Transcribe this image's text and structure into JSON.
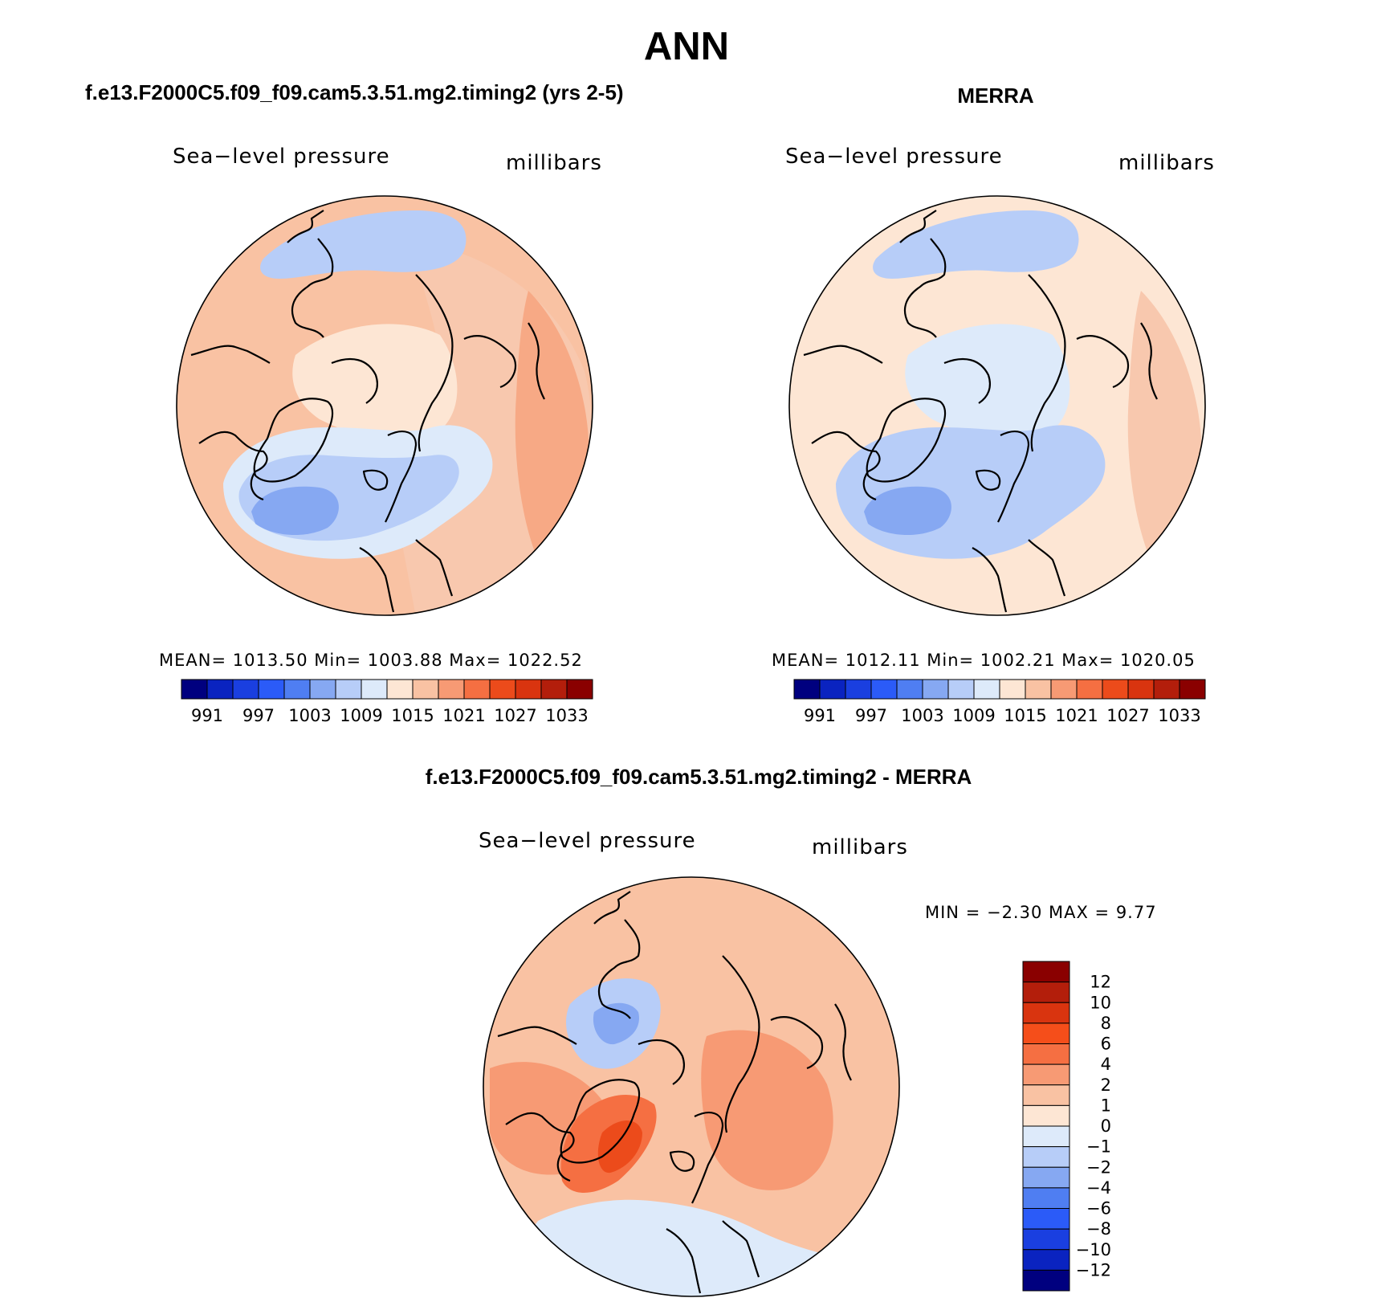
{
  "header": {
    "main_title": "ANN",
    "left_title": "f.e13.F2000C5.f09_f09.cam5.3.51.mg2.timing2 (yrs 2-5)",
    "right_title": "MERRA",
    "diff_title": "f.e13.F2000C5.f09_f09.cam5.3.51.mg2.timing2 - MERRA"
  },
  "panels": {
    "left": {
      "variable": "Sea−level pressure",
      "units": "millibars",
      "stats": "MEAN=  1013.50    Min=  1003.88    Max=  1022.52"
    },
    "right": {
      "variable": "Sea−level pressure",
      "units": "millibars",
      "stats": "MEAN=  1012.11    Min=  1002.21    Max=  1020.05"
    },
    "diff": {
      "variable": "Sea−level pressure",
      "units": "millibars",
      "stats": "MIN =    −2.30  MAX =      9.77"
    }
  },
  "colorbars": {
    "abs": {
      "labels": [
        "991",
        "997",
        "1003",
        "1009",
        "1015",
        "1021",
        "1027",
        "1033"
      ],
      "colors": [
        "#00007f",
        "#0a23c0",
        "#1a3fe0",
        "#2b5bf8",
        "#4f7ef2",
        "#86a8f2",
        "#b7cdf8",
        "#ddeafa",
        "#fde6d4",
        "#f9c2a3",
        "#f79a74",
        "#f56f42",
        "#ec4b1b",
        "#d9340f",
        "#b31e0b",
        "#8a0000"
      ]
    },
    "diff": {
      "labels": [
        "12",
        "10",
        "8",
        "6",
        "4",
        "2",
        "1",
        "0",
        "−1",
        "−2",
        "−4",
        "−6",
        "−8",
        "−10",
        "−12"
      ],
      "colors": [
        "#8a0000",
        "#b31e0b",
        "#d9340f",
        "#f54e1a",
        "#f56f42",
        "#f79a74",
        "#f9c2a3",
        "#fde6d4",
        "#ddeafa",
        "#b7cdf8",
        "#86a8f2",
        "#4f7ef2",
        "#2b5bf8",
        "#1a3fe0",
        "#0a23c0",
        "#00007f"
      ]
    }
  },
  "maps": {
    "projection": "north polar stereographic",
    "left_blobs": [
      {
        "color": "#f8c8ae",
        "shape": "band-east"
      },
      {
        "color": "#f7a985",
        "shape": "pacific-east"
      },
      {
        "color": "#fde6d4",
        "shape": "arctic-center"
      },
      {
        "color": "#ddeafa",
        "shape": "icelandic-outer"
      },
      {
        "color": "#b7cdf8",
        "shape": "icelandic-mid"
      },
      {
        "color": "#86a8f2",
        "shape": "icelandic-core"
      },
      {
        "color": "#b7cdf8",
        "shape": "aleutian-top"
      }
    ],
    "right_blobs": [
      {
        "color": "#fde6d4",
        "shape": "band-east"
      },
      {
        "color": "#f8c8ae",
        "shape": "pacific-east"
      },
      {
        "color": "#ddeafa",
        "shape": "arctic-center"
      },
      {
        "color": "#b7cdf8",
        "shape": "icelandic-outer"
      },
      {
        "color": "#86a8f2",
        "shape": "icelandic-core"
      },
      {
        "color": "#b7cdf8",
        "shape": "aleutian-top"
      }
    ],
    "diff_blobs": [
      {
        "color": "#f9c2a3",
        "shape": "base"
      },
      {
        "color": "#f79a74",
        "shape": "siberia"
      },
      {
        "color": "#f79a74",
        "shape": "canada"
      },
      {
        "color": "#f56f42",
        "shape": "greenland"
      },
      {
        "color": "#ec4b1b",
        "shape": "greenland-core"
      },
      {
        "color": "#ddeafa",
        "shape": "bottom-band"
      },
      {
        "color": "#b7cdf8",
        "shape": "west-low"
      },
      {
        "color": "#86a8f2",
        "shape": "west-low-core"
      }
    ]
  }
}
